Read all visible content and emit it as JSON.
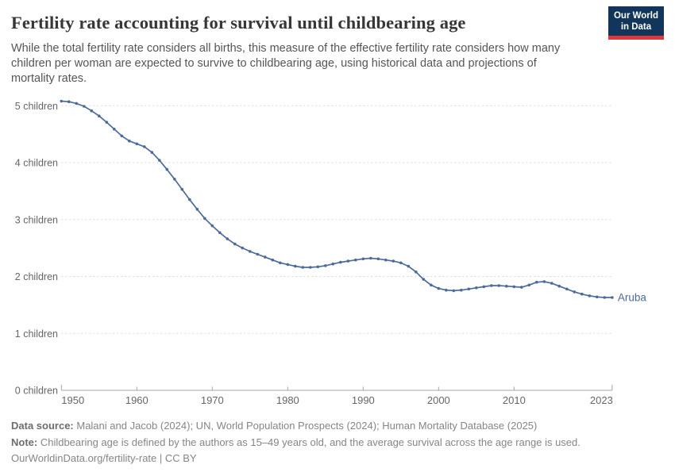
{
  "header": {
    "title": "Fertility rate accounting for survival until childbearing age",
    "subtitle_lines": [
      "While the total fertility rate considers all births, this measure of the effective fertility rate considers how many",
      "children per woman are expected to survive to childbearing age, using historical data and projections of",
      "mortality rates."
    ],
    "logo": {
      "line1": "Our World",
      "line2": "in Data",
      "bg_color": "#12355c",
      "stripe_color": "#e0373a"
    }
  },
  "chart_data": {
    "type": "line",
    "x": [
      1950,
      1951,
      1952,
      1953,
      1954,
      1955,
      1956,
      1957,
      1958,
      1959,
      1960,
      1961,
      1962,
      1963,
      1964,
      1965,
      1966,
      1967,
      1968,
      1969,
      1970,
      1971,
      1972,
      1973,
      1974,
      1975,
      1976,
      1977,
      1978,
      1979,
      1980,
      1981,
      1982,
      1983,
      1984,
      1985,
      1986,
      1987,
      1988,
      1989,
      1990,
      1991,
      1992,
      1993,
      1994,
      1995,
      1996,
      1997,
      1998,
      1999,
      2000,
      2001,
      2002,
      2003,
      2004,
      2005,
      2006,
      2007,
      2008,
      2009,
      2010,
      2011,
      2012,
      2013,
      2014,
      2015,
      2016,
      2017,
      2018,
      2019,
      2020,
      2021,
      2022,
      2023
    ],
    "series": [
      {
        "name": "Aruba",
        "color": "#4c6a9c",
        "values": [
          5.08,
          5.07,
          5.04,
          4.99,
          4.91,
          4.82,
          4.71,
          4.59,
          4.47,
          4.38,
          4.33,
          4.28,
          4.18,
          4.04,
          3.88,
          3.71,
          3.53,
          3.35,
          3.18,
          3.02,
          2.89,
          2.77,
          2.66,
          2.57,
          2.5,
          2.44,
          2.39,
          2.34,
          2.29,
          2.24,
          2.21,
          2.18,
          2.16,
          2.16,
          2.17,
          2.19,
          2.22,
          2.25,
          2.27,
          2.29,
          2.31,
          2.32,
          2.31,
          2.29,
          2.27,
          2.24,
          2.18,
          2.08,
          1.95,
          1.85,
          1.79,
          1.76,
          1.75,
          1.76,
          1.78,
          1.8,
          1.82,
          1.84,
          1.84,
          1.83,
          1.82,
          1.81,
          1.85,
          1.9,
          1.91,
          1.88,
          1.83,
          1.78,
          1.73,
          1.69,
          1.66,
          1.64,
          1.63,
          1.63
        ]
      }
    ],
    "x_ticks": [
      1950,
      1960,
      1970,
      1980,
      1990,
      2000,
      2010,
      2023
    ],
    "y_ticks": [
      0,
      1,
      2,
      3,
      4,
      5
    ],
    "y_tick_suffix": " children",
    "xlim": [
      1950,
      2023
    ],
    "ylim": [
      0,
      5.19
    ],
    "grid": "horizontal-dashed",
    "legend_position": "end-of-line",
    "end_label": "Aruba",
    "axis_color": "#a5a5a5",
    "grid_color": "#d9d9d9",
    "tick_text_color": "#666666"
  },
  "footer": {
    "data_source_label": "Data source:",
    "data_source_text": " Malani and Jacob (2024); UN, World Population Prospects (2024); Human Mortality Database (2025)",
    "note_label": "Note:",
    "note_text": " Childbearing age is defined by the authors as 15–49 years old, and the average survival across the age range is used.",
    "url_text": "OurWorldinData.org/fertility-rate | CC BY"
  }
}
